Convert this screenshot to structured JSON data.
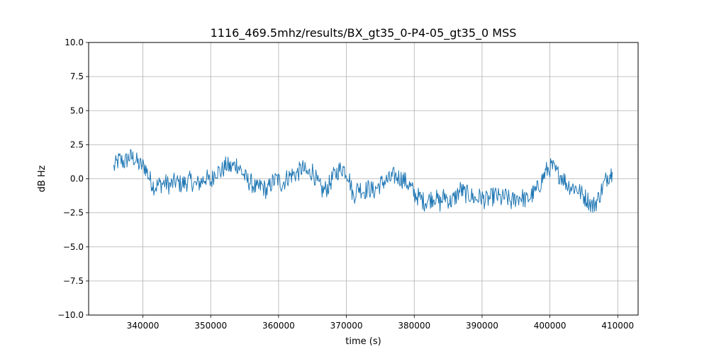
{
  "chart_data": {
    "type": "line",
    "title": "1116_469.5mhz/results/BX_gt35_0-P4-05_gt35_0 MSS",
    "xlabel": "time (s)",
    "ylabel": "dB Hz",
    "xlim": [
      332000,
      413000
    ],
    "ylim": [
      -10,
      10
    ],
    "xticks": [
      340000,
      350000,
      360000,
      370000,
      380000,
      390000,
      400000,
      410000
    ],
    "yticks": [
      -10.0,
      -7.5,
      -5.0,
      -2.5,
      0.0,
      2.5,
      5.0,
      7.5,
      10.0
    ],
    "xtick_labels": [
      "340000",
      "350000",
      "360000",
      "370000",
      "380000",
      "390000",
      "400000",
      "410000"
    ],
    "ytick_labels": [
      "−10.0",
      "−7.5",
      "−5.0",
      "−2.5",
      "0.0",
      "2.5",
      "5.0",
      "7.5",
      "10.0"
    ],
    "grid": true,
    "series_color": "#1f77b4",
    "series": [
      {
        "x": [
          335700,
          336500,
          337300,
          338000,
          338700,
          339500,
          340300,
          341000,
          341700,
          342500,
          343300,
          344000,
          344800,
          345600,
          346300,
          347000,
          347800,
          348600,
          349300,
          350000,
          350700,
          351500,
          352300,
          353000,
          353800,
          354500,
          355300,
          356000,
          356800,
          357500,
          358300,
          359000,
          359800,
          360500,
          361300,
          362000,
          362800,
          363500,
          364300,
          365000,
          365800,
          366500,
          367300,
          368000,
          368800,
          369500,
          370300,
          371000,
          371800,
          372500,
          373300,
          374000,
          374800,
          375500,
          376300,
          377000,
          377800,
          378500,
          379300,
          380000,
          380800,
          381500,
          382300,
          383000,
          383800,
          384500,
          385300,
          386000,
          386800,
          387500,
          388300,
          389000,
          389800,
          390500,
          391300,
          392000,
          392800,
          393500,
          394300,
          395000,
          395800,
          396500,
          397300,
          398000,
          398800,
          399500,
          400300,
          401000,
          401800,
          402500,
          403300,
          404000,
          404800,
          405500,
          406300,
          407000,
          407800,
          408500,
          409200
        ],
        "y": [
          0.8,
          1.4,
          1.2,
          1.6,
          1.5,
          1.0,
          0.9,
          0.0,
          -0.6,
          -0.4,
          -0.3,
          -0.5,
          -0.2,
          -0.4,
          -0.3,
          -0.1,
          -0.5,
          -0.2,
          0.1,
          -0.3,
          0.6,
          0.5,
          1.0,
          0.8,
          1.1,
          0.6,
          -0.1,
          -0.3,
          -0.8,
          -0.5,
          -0.9,
          -0.3,
          0.0,
          -0.4,
          0.1,
          0.3,
          0.4,
          0.8,
          0.3,
          0.6,
          -0.4,
          -0.9,
          -0.6,
          0.1,
          0.6,
          0.8,
          0.3,
          -1.3,
          -0.6,
          -0.9,
          -0.7,
          -0.9,
          -0.5,
          -0.2,
          -0.1,
          0.2,
          0.1,
          -0.1,
          -0.5,
          -1.1,
          -1.4,
          -1.7,
          -1.5,
          -1.3,
          -1.8,
          -1.2,
          -1.7,
          -1.4,
          -0.8,
          -1.1,
          -1.2,
          -1.5,
          -1.3,
          -1.6,
          -1.4,
          -1.2,
          -1.5,
          -1.3,
          -1.7,
          -1.4,
          -1.3,
          -1.6,
          -1.2,
          -0.9,
          -0.1,
          0.6,
          0.9,
          0.4,
          0.2,
          -0.4,
          -0.6,
          -0.7,
          -1.2,
          -1.5,
          -2.0,
          -1.6,
          -0.6,
          0.2,
          0.5
        ]
      }
    ]
  }
}
